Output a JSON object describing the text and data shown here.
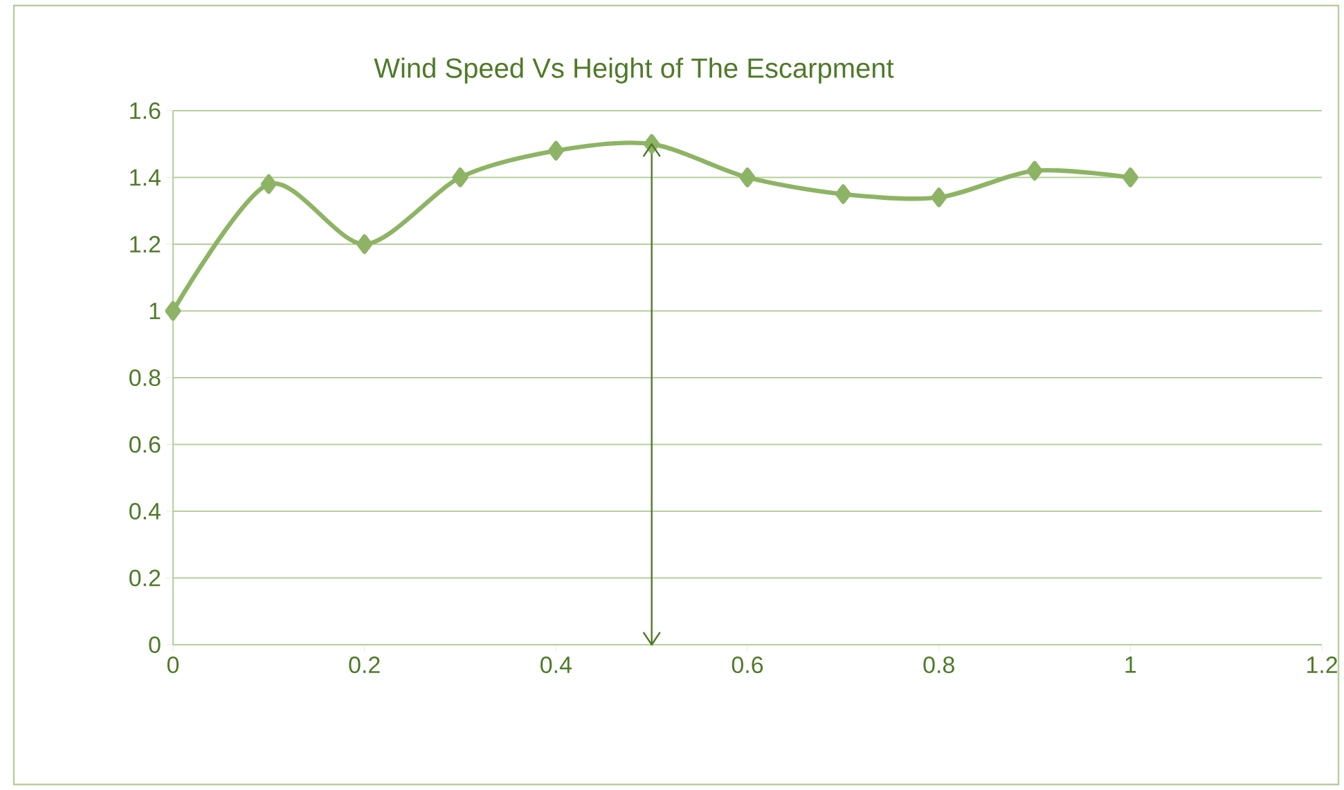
{
  "chart_data": {
    "type": "line",
    "title": "Wind Speed Vs Height of The Escarpment",
    "x": [
      0,
      0.1,
      0.2,
      0.3,
      0.4,
      0.5,
      0.6,
      0.7,
      0.8,
      0.9,
      1
    ],
    "series": [
      {
        "color": "#8db464",
        "values": [
          1.0,
          1.38,
          1.2,
          1.4,
          1.48,
          1.5,
          1.4,
          1.35,
          1.34,
          1.42,
          1.4
        ]
      },
      {
        "type": "line",
        "x": [
          0.5,
          0.5
        ],
        "values": [
          0,
          1.5
        ],
        "color": "#4f7a28",
        "marker": "none"
      }
    ],
    "xlim": [
      0,
      1.2
    ],
    "xticks": [
      0,
      0.2,
      0.4,
      0.6,
      0.8,
      1,
      1.2
    ],
    "ylim": [
      0,
      1.6
    ],
    "yticks": [
      0,
      0.2,
      0.4,
      0.6,
      0.8,
      1,
      1.2,
      1.4,
      1.6
    ],
    "grid": "y",
    "marker": "diamond"
  }
}
